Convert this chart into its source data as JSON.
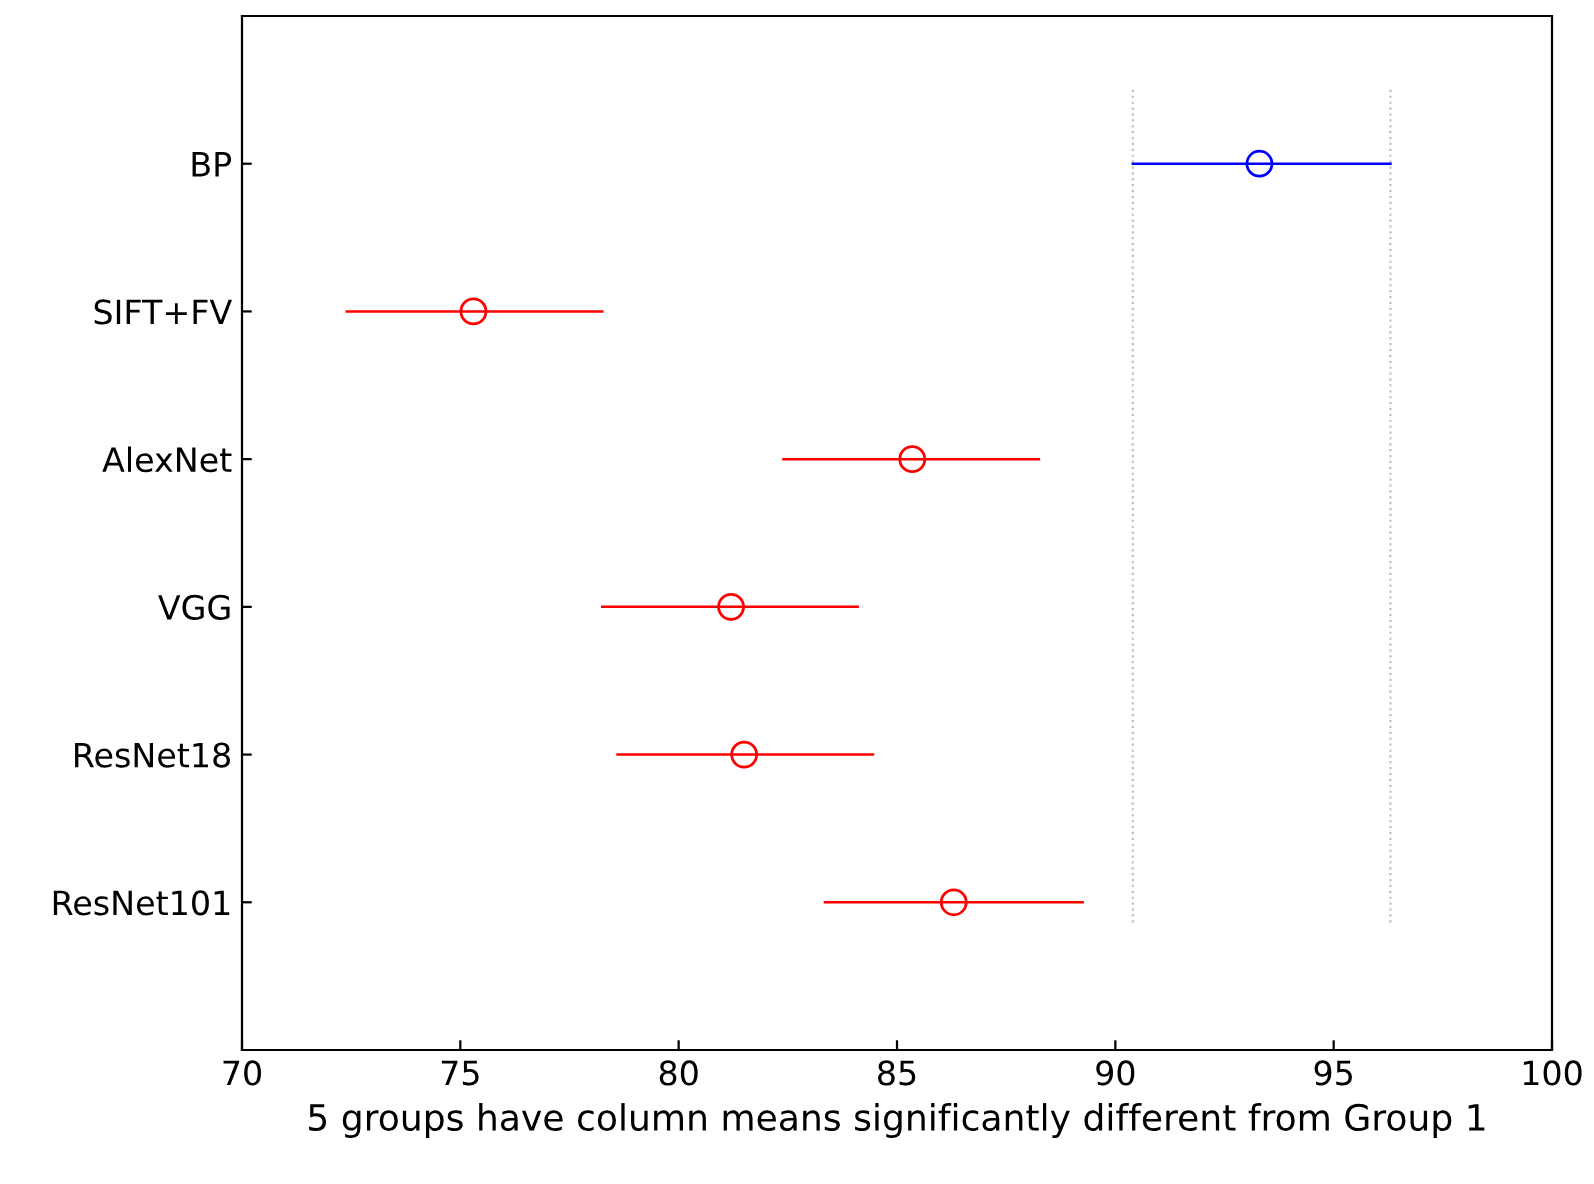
{
  "chart_data": {
    "type": "scatter",
    "orientation": "horizontal",
    "xlabel": "5 groups have column means significantly different from Group 1",
    "categories": [
      "BP",
      "SIFT+FV",
      "AlexNet",
      "VGG",
      "ResNet18",
      "ResNet101"
    ],
    "values": [
      93.3,
      75.3,
      85.35,
      81.2,
      81.5,
      86.3
    ],
    "colors": [
      "#0000ff",
      "#ff0000",
      "#ff0000",
      "#ff0000",
      "#ff0000",
      "#ff0000"
    ],
    "errors": [
      [
        90.4,
        96.3
      ],
      [
        72.4,
        78.25
      ],
      [
        82.4,
        88.25
      ],
      [
        78.25,
        84.1
      ],
      [
        78.6,
        84.45
      ],
      [
        83.35,
        89.25
      ]
    ],
    "marker": "circle",
    "grid": false,
    "xlim": [
      70,
      100
    ],
    "xticks": [
      70,
      75,
      80,
      85,
      90,
      95,
      100
    ],
    "ref_lines": [
      {
        "axis": "x",
        "value": 90.4,
        "color": "#c0c0c0",
        "line_style": "dotted"
      },
      {
        "axis": "x",
        "value": 96.3,
        "color": "#c0c0c0",
        "line_style": "dotted"
      }
    ]
  }
}
